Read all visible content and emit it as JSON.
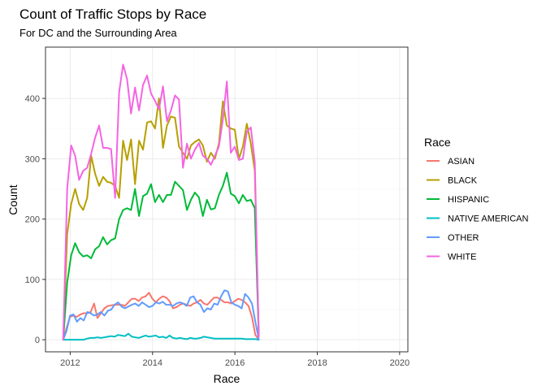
{
  "chart_data": {
    "type": "line",
    "title": "Count of Traffic Stops by Race",
    "subtitle": "For DC and the Surrounding Area",
    "xlabel": "Race",
    "ylabel": "Count",
    "xlim": [
      2011.4,
      2020.2
    ],
    "ylim": [
      -20,
      485
    ],
    "x_ticks": [
      2012,
      2014,
      2016,
      2018,
      2020
    ],
    "y_ticks": [
      0,
      100,
      200,
      300,
      400
    ],
    "grid": true,
    "legend": {
      "title": "Race",
      "position": "right"
    },
    "x_start": 2011.83,
    "x_step": 0.08333,
    "series": [
      {
        "name": "ASIAN",
        "color": "#F8766D",
        "values": [
          0,
          20,
          38,
          40,
          38,
          42,
          44,
          44,
          46,
          60,
          36,
          44,
          52,
          56,
          57,
          58,
          58,
          58,
          56,
          62,
          68,
          68,
          64,
          70,
          72,
          78,
          68,
          62,
          68,
          72,
          70,
          64,
          52,
          54,
          58,
          60,
          58,
          56,
          60,
          62,
          66,
          60,
          58,
          64,
          70,
          70,
          66,
          62,
          62,
          60,
          64,
          68,
          66,
          62,
          56,
          38,
          8,
          0
        ]
      },
      {
        "name": "BLACK",
        "color": "#B79F00",
        "values": [
          0,
          175,
          225,
          250,
          225,
          215,
          235,
          305,
          275,
          255,
          270,
          262,
          260,
          255,
          235,
          330,
          298,
          332,
          258,
          330,
          315,
          360,
          362,
          350,
          400,
          318,
          355,
          370,
          368,
          320,
          310,
          300,
          322,
          328,
          332,
          322,
          295,
          310,
          300,
          325,
          395,
          355,
          350,
          348,
          300,
          320,
          358,
          325,
          280,
          5
        ]
      },
      {
        "name": "HISPANIC",
        "color": "#00BA38",
        "values": [
          0,
          95,
          140,
          160,
          145,
          138,
          140,
          135,
          150,
          155,
          170,
          158,
          165,
          168,
          200,
          215,
          218,
          215,
          250,
          205,
          238,
          242,
          258,
          228,
          240,
          228,
          240,
          240,
          262,
          255,
          248,
          215,
          232,
          244,
          236,
          205,
          232,
          216,
          218,
          240,
          255,
          277,
          242,
          238,
          226,
          240,
          230,
          232,
          218,
          5
        ]
      },
      {
        "name": "NATIVE AMERICAN",
        "color": "#00BFC4",
        "values": [
          0,
          0,
          0,
          0,
          0,
          0,
          0,
          2,
          3,
          3,
          4,
          3,
          4,
          5,
          6,
          5,
          8,
          7,
          6,
          10,
          5,
          4,
          3,
          5,
          7,
          5,
          6,
          7,
          4,
          5,
          3,
          7,
          3,
          2,
          3,
          2,
          1,
          3,
          2,
          2,
          3,
          5,
          4,
          3,
          2,
          2,
          2,
          2,
          2,
          2,
          2,
          2,
          2,
          1,
          1,
          1,
          1,
          0
        ]
      },
      {
        "name": "OTHER",
        "color": "#619CFF",
        "values": [
          0,
          15,
          40,
          42,
          30,
          36,
          32,
          46,
          44,
          40,
          42,
          46,
          40,
          48,
          50,
          58,
          62,
          55,
          52,
          55,
          58,
          60,
          56,
          62,
          58,
          54,
          56,
          62,
          60,
          63,
          58,
          58,
          56,
          60,
          62,
          60,
          56,
          70,
          72,
          62,
          58,
          46,
          52,
          50,
          60,
          58,
          72,
          82,
          80,
          62,
          58,
          56,
          52,
          76,
          70,
          60,
          30,
          0
        ]
      },
      {
        "name": "WHITE",
        "color": "#F564E3",
        "values": [
          0,
          250,
          322,
          305,
          265,
          280,
          285,
          308,
          335,
          355,
          318,
          318,
          316,
          235,
          410,
          456,
          432,
          375,
          418,
          380,
          422,
          438,
          408,
          396,
          382,
          420,
          362,
          380,
          405,
          398,
          285,
          325,
          300,
          315,
          326,
          305,
          300,
          290,
          305,
          320,
          365,
          428,
          310,
          320,
          298,
          300,
          345,
          352,
          295,
          5
        ]
      }
    ]
  }
}
